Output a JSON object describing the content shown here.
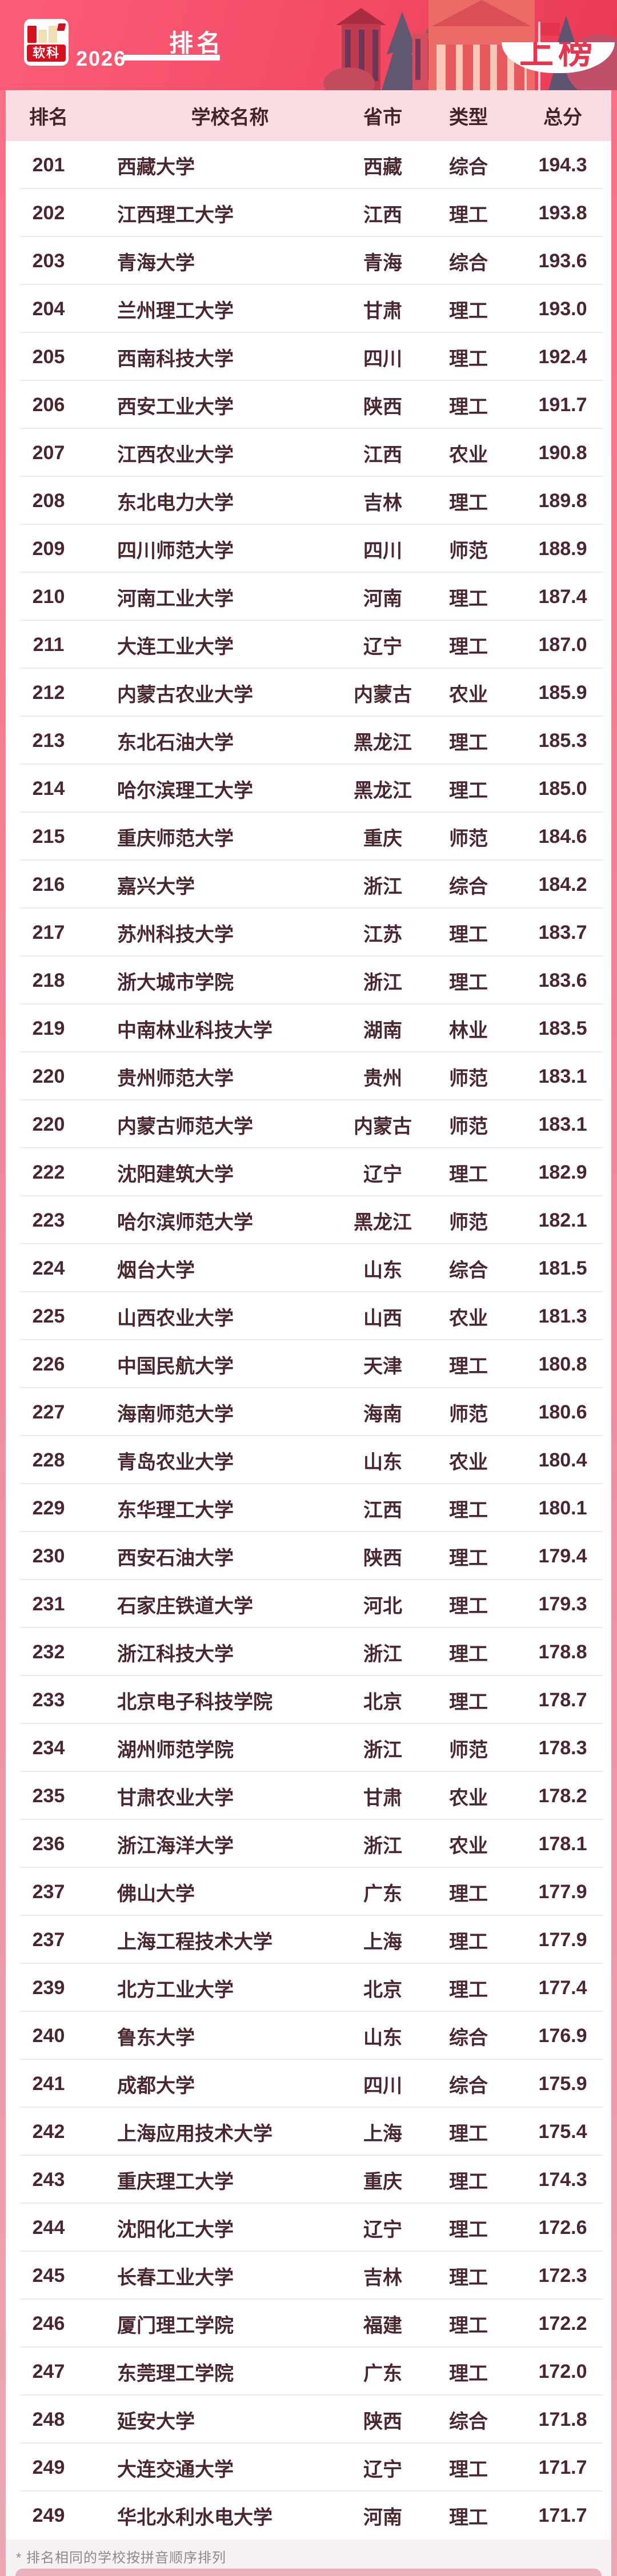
{
  "banner": {
    "brand_logo_text": "软科",
    "year": "2026",
    "title": "排名",
    "badge_text": "上榜"
  },
  "table": {
    "columns": [
      "排名",
      "学校名称",
      "省市",
      "类型",
      "总分"
    ],
    "rows": [
      {
        "rank": "201",
        "name": "西藏大学",
        "province": "西藏",
        "type": "综合",
        "score": "194.3"
      },
      {
        "rank": "202",
        "name": "江西理工大学",
        "province": "江西",
        "type": "理工",
        "score": "193.8"
      },
      {
        "rank": "203",
        "name": "青海大学",
        "province": "青海",
        "type": "综合",
        "score": "193.6"
      },
      {
        "rank": "204",
        "name": "兰州理工大学",
        "province": "甘肃",
        "type": "理工",
        "score": "193.0"
      },
      {
        "rank": "205",
        "name": "西南科技大学",
        "province": "四川",
        "type": "理工",
        "score": "192.4"
      },
      {
        "rank": "206",
        "name": "西安工业大学",
        "province": "陕西",
        "type": "理工",
        "score": "191.7"
      },
      {
        "rank": "207",
        "name": "江西农业大学",
        "province": "江西",
        "type": "农业",
        "score": "190.8"
      },
      {
        "rank": "208",
        "name": "东北电力大学",
        "province": "吉林",
        "type": "理工",
        "score": "189.8"
      },
      {
        "rank": "209",
        "name": "四川师范大学",
        "province": "四川",
        "type": "师范",
        "score": "188.9"
      },
      {
        "rank": "210",
        "name": "河南工业大学",
        "province": "河南",
        "type": "理工",
        "score": "187.4"
      },
      {
        "rank": "211",
        "name": "大连工业大学",
        "province": "辽宁",
        "type": "理工",
        "score": "187.0"
      },
      {
        "rank": "212",
        "name": "内蒙古农业大学",
        "province": "内蒙古",
        "type": "农业",
        "score": "185.9"
      },
      {
        "rank": "213",
        "name": "东北石油大学",
        "province": "黑龙江",
        "type": "理工",
        "score": "185.3"
      },
      {
        "rank": "214",
        "name": "哈尔滨理工大学",
        "province": "黑龙江",
        "type": "理工",
        "score": "185.0"
      },
      {
        "rank": "215",
        "name": "重庆师范大学",
        "province": "重庆",
        "type": "师范",
        "score": "184.6"
      },
      {
        "rank": "216",
        "name": "嘉兴大学",
        "province": "浙江",
        "type": "综合",
        "score": "184.2"
      },
      {
        "rank": "217",
        "name": "苏州科技大学",
        "province": "江苏",
        "type": "理工",
        "score": "183.7"
      },
      {
        "rank": "218",
        "name": "浙大城市学院",
        "province": "浙江",
        "type": "理工",
        "score": "183.6"
      },
      {
        "rank": "219",
        "name": "中南林业科技大学",
        "province": "湖南",
        "type": "林业",
        "score": "183.5"
      },
      {
        "rank": "220",
        "name": "贵州师范大学",
        "province": "贵州",
        "type": "师范",
        "score": "183.1"
      },
      {
        "rank": "220",
        "name": "内蒙古师范大学",
        "province": "内蒙古",
        "type": "师范",
        "score": "183.1"
      },
      {
        "rank": "222",
        "name": "沈阳建筑大学",
        "province": "辽宁",
        "type": "理工",
        "score": "182.9"
      },
      {
        "rank": "223",
        "name": "哈尔滨师范大学",
        "province": "黑龙江",
        "type": "师范",
        "score": "182.1"
      },
      {
        "rank": "224",
        "name": "烟台大学",
        "province": "山东",
        "type": "综合",
        "score": "181.5"
      },
      {
        "rank": "225",
        "name": "山西农业大学",
        "province": "山西",
        "type": "农业",
        "score": "181.3"
      },
      {
        "rank": "226",
        "name": "中国民航大学",
        "province": "天津",
        "type": "理工",
        "score": "180.8"
      },
      {
        "rank": "227",
        "name": "海南师范大学",
        "province": "海南",
        "type": "师范",
        "score": "180.6"
      },
      {
        "rank": "228",
        "name": "青岛农业大学",
        "province": "山东",
        "type": "农业",
        "score": "180.4"
      },
      {
        "rank": "229",
        "name": "东华理工大学",
        "province": "江西",
        "type": "理工",
        "score": "180.1"
      },
      {
        "rank": "230",
        "name": "西安石油大学",
        "province": "陕西",
        "type": "理工",
        "score": "179.4"
      },
      {
        "rank": "231",
        "name": "石家庄铁道大学",
        "province": "河北",
        "type": "理工",
        "score": "179.3"
      },
      {
        "rank": "232",
        "name": "浙江科技大学",
        "province": "浙江",
        "type": "理工",
        "score": "178.8"
      },
      {
        "rank": "233",
        "name": "北京电子科技学院",
        "province": "北京",
        "type": "理工",
        "score": "178.7"
      },
      {
        "rank": "234",
        "name": "湖州师范学院",
        "province": "浙江",
        "type": "师范",
        "score": "178.3"
      },
      {
        "rank": "235",
        "name": "甘肃农业大学",
        "province": "甘肃",
        "type": "农业",
        "score": "178.2"
      },
      {
        "rank": "236",
        "name": "浙江海洋大学",
        "province": "浙江",
        "type": "农业",
        "score": "178.1"
      },
      {
        "rank": "237",
        "name": "佛山大学",
        "province": "广东",
        "type": "理工",
        "score": "177.9"
      },
      {
        "rank": "237",
        "name": "上海工程技术大学",
        "province": "上海",
        "type": "理工",
        "score": "177.9"
      },
      {
        "rank": "239",
        "name": "北方工业大学",
        "province": "北京",
        "type": "理工",
        "score": "177.4"
      },
      {
        "rank": "240",
        "name": "鲁东大学",
        "province": "山东",
        "type": "综合",
        "score": "176.9"
      },
      {
        "rank": "241",
        "name": "成都大学",
        "province": "四川",
        "type": "综合",
        "score": "175.9"
      },
      {
        "rank": "242",
        "name": "上海应用技术大学",
        "province": "上海",
        "type": "理工",
        "score": "175.4"
      },
      {
        "rank": "243",
        "name": "重庆理工大学",
        "province": "重庆",
        "type": "理工",
        "score": "174.3"
      },
      {
        "rank": "244",
        "name": "沈阳化工大学",
        "province": "辽宁",
        "type": "理工",
        "score": "172.6"
      },
      {
        "rank": "245",
        "name": "长春工业大学",
        "province": "吉林",
        "type": "理工",
        "score": "172.3"
      },
      {
        "rank": "246",
        "name": "厦门理工学院",
        "province": "福建",
        "type": "理工",
        "score": "172.2"
      },
      {
        "rank": "247",
        "name": "东莞理工学院",
        "province": "广东",
        "type": "理工",
        "score": "172.0"
      },
      {
        "rank": "248",
        "name": "延安大学",
        "province": "陕西",
        "type": "综合",
        "score": "171.8"
      },
      {
        "rank": "249",
        "name": "大连交通大学",
        "province": "辽宁",
        "type": "理工",
        "score": "171.7"
      },
      {
        "rank": "249",
        "name": "华北水利水电大学",
        "province": "河南",
        "type": "理工",
        "score": "171.7"
      }
    ]
  },
  "footer": {
    "note": "* 排名相同的学校按拼音顺序排列"
  },
  "colors": {
    "banner_red": "#f44b66",
    "header_band_pink": "#fadde2",
    "text_maroon": "#4a262e",
    "badge_red": "#e8354f",
    "bottom_bar_pink": "#eab0bc"
  }
}
